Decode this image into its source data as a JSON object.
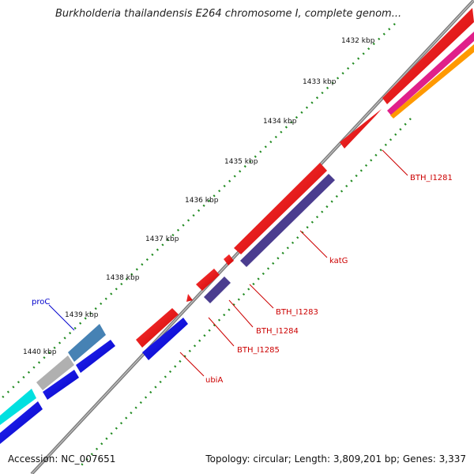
{
  "title": "Burkholderia thailandensis E264 chromosome I, complete genom...",
  "footer": {
    "accession": "Accession: NC_007651",
    "summary": "Topology: circular; Length: 3,809,201 bp; Genes: 3,337"
  },
  "ticks": [
    "1432 kbp",
    "1433 kbp",
    "1434 kbp",
    "1435 kbp",
    "1436 kbp",
    "1437 kbp",
    "1438 kbp",
    "1439 kbp",
    "1440 kbp"
  ],
  "genes": [
    {
      "label": "BTH_I1281",
      "color": "#cc0000"
    },
    {
      "label": "katG",
      "color": "#cc0000"
    },
    {
      "label": "BTH_I1283",
      "color": "#cc0000"
    },
    {
      "label": "BTH_I1284",
      "color": "#cc0000"
    },
    {
      "label": "BTH_I1285",
      "color": "#cc0000"
    },
    {
      "label": "ubiA",
      "color": "#cc0000"
    },
    {
      "label": "proC",
      "color": "#0000cc"
    }
  ],
  "colors": {
    "backbone": "#888888",
    "tick_marks": "#228b22",
    "forward_cds": "#ee0000",
    "reverse_cds": "#0000dd",
    "purple_feature": "#4b3d8f",
    "steel_feature": "#4682b4",
    "grey_feature": "#b0b0b0",
    "cyan_feature": "#00e0e0",
    "magenta_feature": "#e0208a",
    "orange_feature": "#ff9900"
  }
}
